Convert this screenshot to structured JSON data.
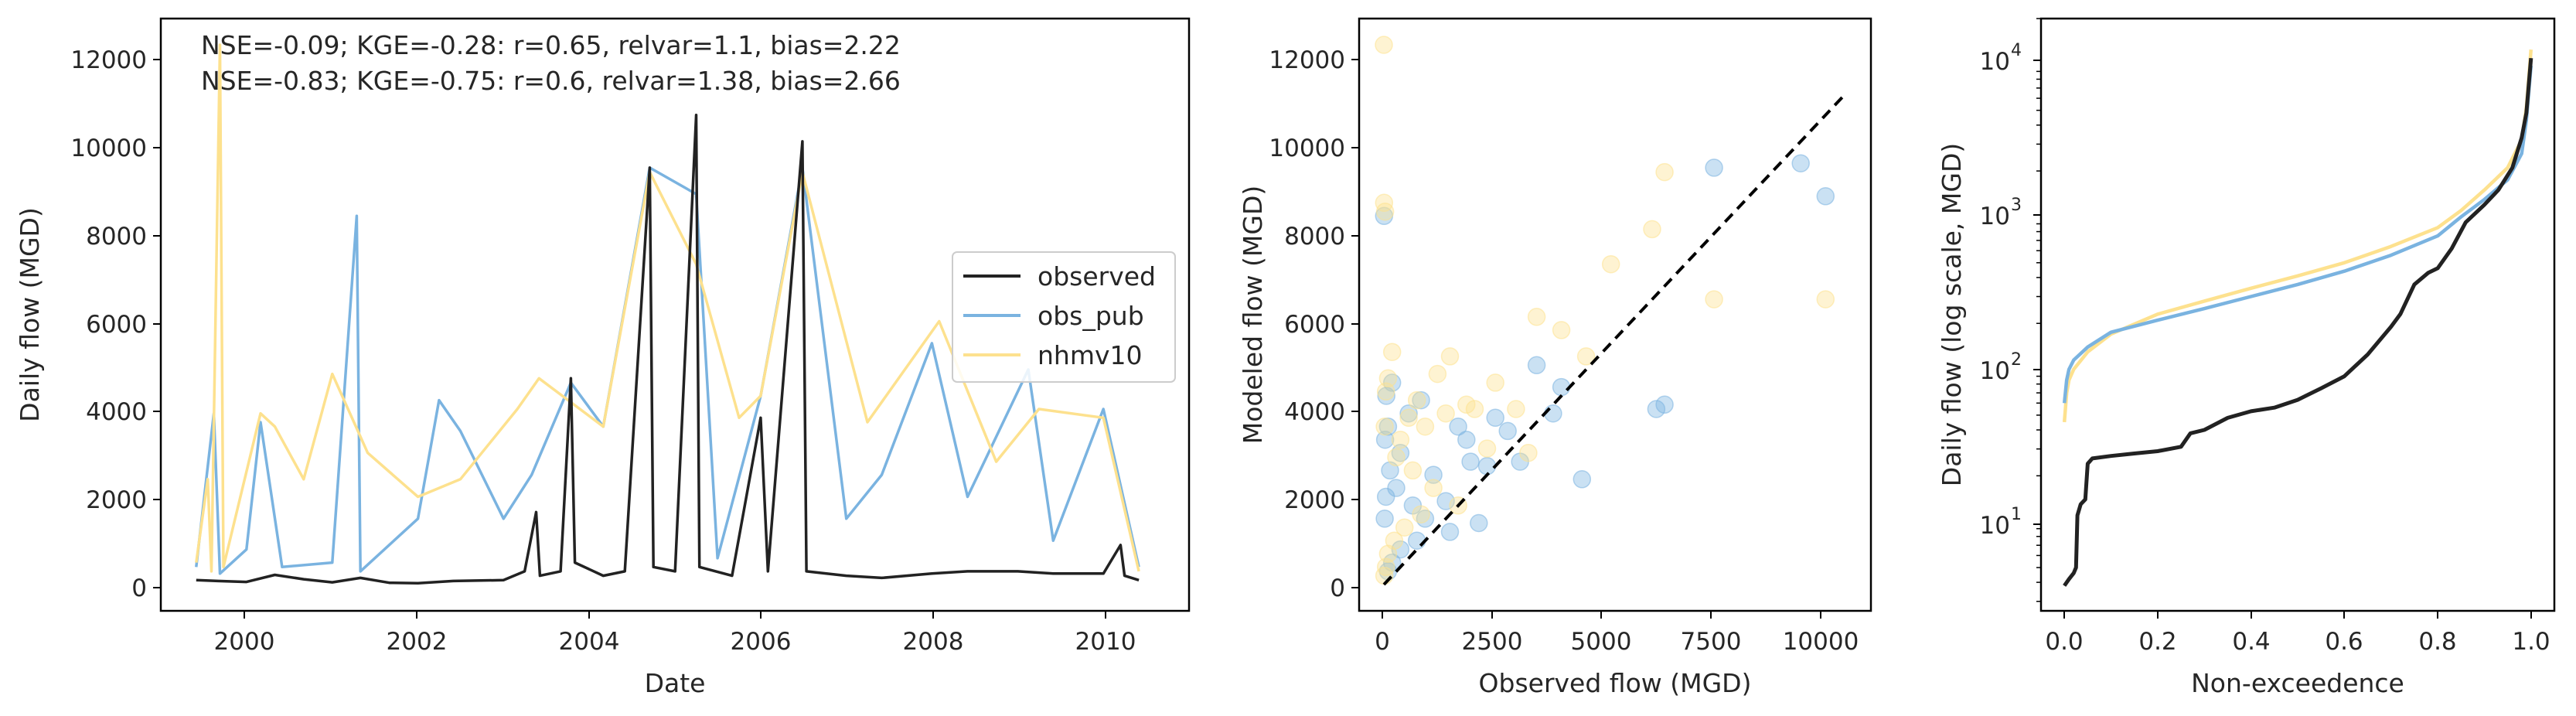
{
  "colors": {
    "observed": "#222222",
    "obs_pub": "#7ab3e0",
    "nhmv10": "#fde18e",
    "diagonal": "#000000"
  },
  "chart_data": [
    {
      "type": "line",
      "xlabel": "Date",
      "ylabel": "Daily flow (MGD)",
      "xlim": [
        "1999-01-01",
        "2011-01-01"
      ],
      "ylim": [
        -600,
        12900
      ],
      "x_ticks": [
        "2000",
        "2002",
        "2004",
        "2006",
        "2008",
        "2010"
      ],
      "y_ticks": [
        "0",
        "2000",
        "4000",
        "6000",
        "8000",
        "10000",
        "12000"
      ],
      "legend": {
        "position": "center-right",
        "entries": [
          "observed",
          "obs_pub",
          "nhmv10"
        ]
      },
      "annotations": [
        "NSE=-0.09; KGE=-0.28: r=0.65, relvar=1.1, bias=2.22",
        "NSE=-0.83; KGE=-0.75: r=0.6, relvar=1.38, bias=2.66"
      ],
      "series": [
        {
          "name": "observed",
          "points": [
            [
              "1999-06-01",
              100
            ],
            [
              "1999-09-01",
              80
            ],
            [
              "2000-01-01",
              60
            ],
            [
              "2000-05-01",
              220
            ],
            [
              "2000-09-01",
              120
            ],
            [
              "2001-01-01",
              50
            ],
            [
              "2001-05-01",
              150
            ],
            [
              "2001-09-01",
              40
            ],
            [
              "2002-01-01",
              30
            ],
            [
              "2002-06-01",
              80
            ],
            [
              "2003-01-01",
              100
            ],
            [
              "2003-04-01",
              300
            ],
            [
              "2003-05-20",
              1650
            ],
            [
              "2003-06-05",
              200
            ],
            [
              "2003-09-01",
              300
            ],
            [
              "2003-10-15",
              4700
            ],
            [
              "2003-11-01",
              500
            ],
            [
              "2004-03-01",
              200
            ],
            [
              "2004-06-01",
              300
            ],
            [
              "2004-09-15",
              9500
            ],
            [
              "2004-10-01",
              400
            ],
            [
              "2005-01-01",
              300
            ],
            [
              "2005-04-01",
              10700
            ],
            [
              "2005-04-15",
              400
            ],
            [
              "2005-09-01",
              200
            ],
            [
              "2006-01-01",
              3800
            ],
            [
              "2006-02-01",
              300
            ],
            [
              "2006-06-28",
              10100
            ],
            [
              "2006-07-15",
              300
            ],
            [
              "2007-01-01",
              200
            ],
            [
              "2007-06-01",
              150
            ],
            [
              "2008-01-01",
              250
            ],
            [
              "2008-06-01",
              300
            ],
            [
              "2009-01-01",
              300
            ],
            [
              "2009-06-01",
              250
            ],
            [
              "2010-01-01",
              250
            ],
            [
              "2010-03-15",
              900
            ],
            [
              "2010-04-01",
              200
            ],
            [
              "2010-06-01",
              100
            ]
          ]
        },
        {
          "name": "obs_pub",
          "points": [
            [
              "1999-06-01",
              400
            ],
            [
              "1999-08-15",
              3900
            ],
            [
              "1999-09-10",
              250
            ],
            [
              "2000-01-01",
              800
            ],
            [
              "2000-03-01",
              3700
            ],
            [
              "2000-06-01",
              400
            ],
            [
              "2001-01-01",
              500
            ],
            [
              "2001-04-15",
              8400
            ],
            [
              "2001-05-01",
              300
            ],
            [
              "2002-01-01",
              1500
            ],
            [
              "2002-04-01",
              4200
            ],
            [
              "2002-07-01",
              3500
            ],
            [
              "2003-01-01",
              1500
            ],
            [
              "2003-05-01",
              2500
            ],
            [
              "2003-10-15",
              4600
            ],
            [
              "2004-03-01",
              3600
            ],
            [
              "2004-09-15",
              9500
            ],
            [
              "2005-04-01",
              8900
            ],
            [
              "2005-07-01",
              600
            ],
            [
              "2006-01-01",
              4300
            ],
            [
              "2006-06-28",
              9500
            ],
            [
              "2007-01-01",
              1500
            ],
            [
              "2007-06-01",
              2500
            ],
            [
              "2008-01-01",
              5500
            ],
            [
              "2008-06-01",
              2000
            ],
            [
              "2009-02-15",
              4900
            ],
            [
              "2009-06-01",
              1000
            ],
            [
              "2010-01-01",
              4000
            ],
            [
              "2010-06-01",
              400
            ]
          ]
        },
        {
          "name": "nhmv10",
          "points": [
            [
              "1999-06-01",
              500
            ],
            [
              "1999-07-20",
              2400
            ],
            [
              "1999-08-05",
              300
            ],
            [
              "1999-09-10",
              12300
            ],
            [
              "1999-09-25",
              400
            ],
            [
              "2000-03-01",
              3900
            ],
            [
              "2000-05-01",
              3600
            ],
            [
              "2000-09-01",
              2400
            ],
            [
              "2001-01-01",
              4800
            ],
            [
              "2001-06-01",
              3000
            ],
            [
              "2002-01-01",
              2000
            ],
            [
              "2002-07-01",
              2400
            ],
            [
              "2003-03-01",
              4000
            ],
            [
              "2003-06-01",
              4700
            ],
            [
              "2004-03-01",
              3600
            ],
            [
              "2004-09-15",
              9400
            ],
            [
              "2005-04-01",
              7300
            ],
            [
              "2005-10-01",
              3800
            ],
            [
              "2006-01-01",
              4300
            ],
            [
              "2006-06-28",
              9400
            ],
            [
              "2007-04-01",
              3700
            ],
            [
              "2008-02-01",
              6000
            ],
            [
              "2008-10-01",
              2800
            ],
            [
              "2009-04-01",
              4000
            ],
            [
              "2010-01-01",
              3800
            ],
            [
              "2010-06-01",
              300
            ]
          ]
        }
      ]
    },
    {
      "type": "scatter",
      "xlabel": "Observed flow (MGD)",
      "ylabel": "Modeled flow (MGD)",
      "xlim": [
        -600,
        11800
      ],
      "ylim": [
        -600,
        12900
      ],
      "x_ticks": [
        "0",
        "2500",
        "5000",
        "7500",
        "10000"
      ],
      "y_ticks": [
        "0",
        "2000",
        "4000",
        "6000",
        "8000",
        "10000",
        "12000"
      ],
      "diagonal": [
        [
          0,
          0
        ],
        [
          11200,
          11200
        ]
      ],
      "series": [
        {
          "name": "obs_pub",
          "points": [
            [
              5,
              8400
            ],
            [
              8000,
              9500
            ],
            [
              10700,
              8850
            ],
            [
              10100,
              9600
            ],
            [
              6800,
              4100
            ],
            [
              6600,
              4000
            ],
            [
              4800,
              2400
            ],
            [
              3700,
              5000
            ],
            [
              4300,
              4500
            ],
            [
              2700,
              3800
            ],
            [
              2100,
              2800
            ],
            [
              1500,
              1900
            ],
            [
              3000,
              3500
            ],
            [
              1800,
              3600
            ],
            [
              1200,
              2500
            ],
            [
              900,
              4200
            ],
            [
              600,
              3900
            ],
            [
              400,
              3000
            ],
            [
              200,
              4600
            ],
            [
              100,
              3600
            ],
            [
              50,
              2000
            ],
            [
              20,
              1500
            ],
            [
              300,
              2200
            ],
            [
              700,
              1800
            ],
            [
              1000,
              1500
            ],
            [
              2500,
              2700
            ],
            [
              1600,
              1200
            ],
            [
              800,
              1000
            ],
            [
              400,
              800
            ],
            [
              200,
              500
            ],
            [
              100,
              300
            ],
            [
              2300,
              1400
            ],
            [
              3300,
              2800
            ],
            [
              4100,
              3900
            ],
            [
              2000,
              3300
            ],
            [
              150,
              2600
            ],
            [
              60,
              4300
            ],
            [
              30,
              3300
            ]
          ]
        },
        {
          "name": "nhmv10",
          "points": [
            [
              0,
              12300
            ],
            [
              5,
              8700
            ],
            [
              30,
              8500
            ],
            [
              6800,
              9400
            ],
            [
              6500,
              8100
            ],
            [
              10700,
              6500
            ],
            [
              8000,
              6500
            ],
            [
              5500,
              7300
            ],
            [
              3700,
              6100
            ],
            [
              4300,
              5800
            ],
            [
              2700,
              4600
            ],
            [
              4900,
              5200
            ],
            [
              3200,
              4000
            ],
            [
              2000,
              4100
            ],
            [
              1500,
              3900
            ],
            [
              1000,
              3600
            ],
            [
              800,
              4200
            ],
            [
              600,
              3800
            ],
            [
              400,
              3300
            ],
            [
              200,
              5300
            ],
            [
              100,
              4700
            ],
            [
              50,
              4400
            ],
            [
              20,
              3600
            ],
            [
              300,
              2900
            ],
            [
              700,
              2600
            ],
            [
              1200,
              2200
            ],
            [
              2500,
              3100
            ],
            [
              1800,
              1800
            ],
            [
              900,
              1600
            ],
            [
              500,
              1300
            ],
            [
              250,
              1000
            ],
            [
              100,
              700
            ],
            [
              50,
              400
            ],
            [
              10,
              200
            ],
            [
              2200,
              4000
            ],
            [
              3500,
              3000
            ],
            [
              1600,
              5200
            ],
            [
              1300,
              4800
            ]
          ]
        }
      ]
    },
    {
      "type": "line",
      "xlabel": "Non-exceedence",
      "ylabel": "Daily flow (log scale, MGD)",
      "xlim": [
        -0.05,
        1.05
      ],
      "ylog": [
        2.6,
        20000
      ],
      "x_ticks": [
        "0.0",
        "0.2",
        "0.4",
        "0.6",
        "0.8",
        "1.0"
      ],
      "y_ticks": [
        "10",
        "10",
        "10",
        "10"
      ],
      "y_tick_exponents": [
        "1",
        "2",
        "3",
        "4"
      ],
      "series": [
        {
          "name": "observed",
          "points": [
            [
              0,
              3.8
            ],
            [
              0.01,
              4.2
            ],
            [
              0.02,
              4.6
            ],
            [
              0.025,
              5
            ],
            [
              0.028,
              11
            ],
            [
              0.035,
              13
            ],
            [
              0.045,
              14
            ],
            [
              0.05,
              24
            ],
            [
              0.06,
              26
            ],
            [
              0.1,
              27
            ],
            [
              0.15,
              28
            ],
            [
              0.2,
              29
            ],
            [
              0.25,
              31
            ],
            [
              0.27,
              38
            ],
            [
              0.3,
              40
            ],
            [
              0.35,
              48
            ],
            [
              0.4,
              53
            ],
            [
              0.45,
              56
            ],
            [
              0.5,
              63
            ],
            [
              0.55,
              75
            ],
            [
              0.6,
              90
            ],
            [
              0.65,
              125
            ],
            [
              0.7,
              190
            ],
            [
              0.72,
              230
            ],
            [
              0.75,
              360
            ],
            [
              0.78,
              430
            ],
            [
              0.8,
              460
            ],
            [
              0.83,
              620
            ],
            [
              0.86,
              920
            ],
            [
              0.9,
              1200
            ],
            [
              0.93,
              1500
            ],
            [
              0.96,
              2100
            ],
            [
              0.98,
              3300
            ],
            [
              0.99,
              4800
            ],
            [
              1,
              11000
            ]
          ]
        },
        {
          "name": "obs_pub",
          "points": [
            [
              0,
              60
            ],
            [
              0.005,
              85
            ],
            [
              0.01,
              100
            ],
            [
              0.02,
              115
            ],
            [
              0.05,
              140
            ],
            [
              0.1,
              175
            ],
            [
              0.2,
              210
            ],
            [
              0.3,
              250
            ],
            [
              0.4,
              300
            ],
            [
              0.5,
              360
            ],
            [
              0.6,
              440
            ],
            [
              0.7,
              560
            ],
            [
              0.8,
              750
            ],
            [
              0.85,
              1000
            ],
            [
              0.9,
              1300
            ],
            [
              0.95,
              1750
            ],
            [
              0.98,
              2600
            ],
            [
              0.99,
              4300
            ],
            [
              1,
              9800
            ]
          ]
        },
        {
          "name": "nhmv10",
          "points": [
            [
              0,
              45
            ],
            [
              0.005,
              70
            ],
            [
              0.01,
              85
            ],
            [
              0.02,
              100
            ],
            [
              0.05,
              130
            ],
            [
              0.1,
              170
            ],
            [
              0.2,
              230
            ],
            [
              0.3,
              280
            ],
            [
              0.4,
              340
            ],
            [
              0.5,
              410
            ],
            [
              0.6,
              500
            ],
            [
              0.7,
              640
            ],
            [
              0.8,
              850
            ],
            [
              0.85,
              1100
            ],
            [
              0.9,
              1500
            ],
            [
              0.95,
              2100
            ],
            [
              0.98,
              3200
            ],
            [
              0.99,
              5200
            ],
            [
              1,
              12500
            ]
          ]
        }
      ]
    }
  ]
}
